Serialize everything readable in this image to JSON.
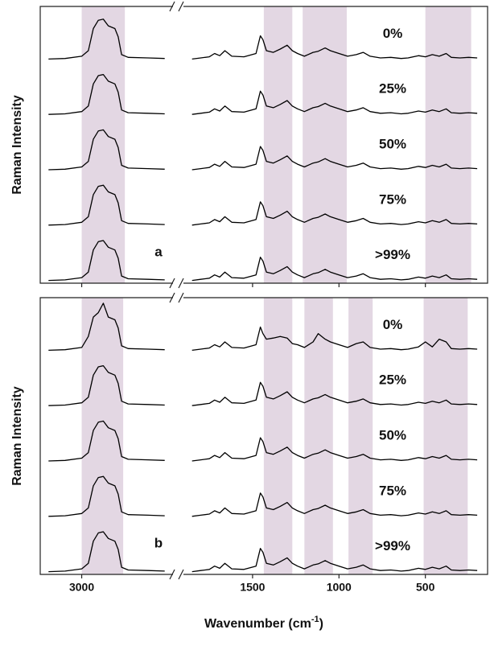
{
  "chart_data": [
    {
      "type": "line",
      "y_label": "Raman Intensity",
      "panel_label": "a",
      "xlim": [
        3250,
        140
      ],
      "x_break": [
        2450,
        1900
      ],
      "ylim": [
        -0.05,
        4.95
      ],
      "xticks": [
        3000,
        1500,
        1000,
        500
      ],
      "show_xtick_labels": false,
      "shade_color": "#e3d7e3",
      "shaded_regions": [
        [
          3000,
          2740
        ],
        [
          1435,
          1270
        ],
        [
          1210,
          955
        ],
        [
          500,
          235
        ]
      ],
      "x": [
        3200,
        3100,
        3000,
        2960,
        2930,
        2900,
        2870,
        2840,
        2800,
        2780,
        2760,
        2720,
        2600,
        2500,
        2000,
        1850,
        1800,
        1750,
        1720,
        1690,
        1660,
        1620,
        1550,
        1480,
        1455,
        1440,
        1420,
        1380,
        1340,
        1300,
        1270,
        1240,
        1200,
        1150,
        1120,
        1080,
        1050,
        1000,
        950,
        900,
        860,
        820,
        760,
        700,
        640,
        600,
        540,
        500,
        460,
        420,
        380,
        350,
        300,
        250,
        200
      ],
      "series": [
        {
          "name": "0%",
          "color": "#000000",
          "values": [
            4.0,
            4.01,
            4.05,
            4.15,
            4.55,
            4.7,
            4.72,
            4.6,
            4.55,
            4.4,
            4.08,
            4.03,
            4.02,
            4.01,
            null,
            4.0,
            4.02,
            4.04,
            4.1,
            4.06,
            4.15,
            4.05,
            4.04,
            4.1,
            4.42,
            4.35,
            4.15,
            4.12,
            4.18,
            4.25,
            4.15,
            4.1,
            4.05,
            4.12,
            4.14,
            4.2,
            4.15,
            4.1,
            4.05,
            4.08,
            4.12,
            4.05,
            4.02,
            4.03,
            4.01,
            4.02,
            4.06,
            4.04,
            4.08,
            4.05,
            4.1,
            4.03,
            4.02,
            4.03,
            4.02
          ]
        },
        {
          "name": "25%",
          "color": "#000000",
          "values": [
            3.0,
            3.01,
            3.05,
            3.15,
            3.55,
            3.7,
            3.72,
            3.6,
            3.55,
            3.4,
            3.08,
            3.03,
            3.02,
            3.01,
            null,
            3.0,
            3.02,
            3.04,
            3.1,
            3.06,
            3.15,
            3.05,
            3.04,
            3.1,
            3.42,
            3.35,
            3.15,
            3.12,
            3.18,
            3.25,
            3.15,
            3.1,
            3.05,
            3.12,
            3.14,
            3.2,
            3.15,
            3.1,
            3.05,
            3.08,
            3.12,
            3.05,
            3.02,
            3.03,
            3.01,
            3.02,
            3.06,
            3.04,
            3.08,
            3.05,
            3.1,
            3.03,
            3.02,
            3.03,
            3.02
          ]
        },
        {
          "name": "50%",
          "color": "#000000",
          "values": [
            2.0,
            2.01,
            2.05,
            2.15,
            2.55,
            2.7,
            2.72,
            2.6,
            2.55,
            2.4,
            2.08,
            2.03,
            2.02,
            2.01,
            null,
            2.0,
            2.02,
            2.04,
            2.1,
            2.06,
            2.15,
            2.05,
            2.04,
            2.1,
            2.42,
            2.35,
            2.15,
            2.12,
            2.18,
            2.25,
            2.15,
            2.1,
            2.05,
            2.12,
            2.14,
            2.2,
            2.15,
            2.1,
            2.05,
            2.08,
            2.12,
            2.05,
            2.02,
            2.03,
            2.01,
            2.02,
            2.06,
            2.04,
            2.08,
            2.05,
            2.1,
            2.03,
            2.02,
            2.03,
            2.02
          ]
        },
        {
          "name": "75%",
          "color": "#000000",
          "values": [
            1.0,
            1.01,
            1.05,
            1.15,
            1.55,
            1.7,
            1.72,
            1.6,
            1.55,
            1.4,
            1.08,
            1.03,
            1.02,
            1.01,
            null,
            1.0,
            1.02,
            1.04,
            1.1,
            1.06,
            1.15,
            1.05,
            1.04,
            1.1,
            1.42,
            1.35,
            1.15,
            1.12,
            1.18,
            1.25,
            1.15,
            1.1,
            1.05,
            1.12,
            1.14,
            1.2,
            1.15,
            1.1,
            1.05,
            1.08,
            1.12,
            1.05,
            1.02,
            1.03,
            1.01,
            1.02,
            1.06,
            1.04,
            1.08,
            1.05,
            1.1,
            1.03,
            1.02,
            1.03,
            1.02
          ]
        },
        {
          "name": ">99%",
          "color": "#000000",
          "values": [
            0.0,
            0.01,
            0.05,
            0.15,
            0.55,
            0.7,
            0.72,
            0.6,
            0.55,
            0.4,
            0.08,
            0.03,
            0.02,
            0.01,
            null,
            0.0,
            0.02,
            0.04,
            0.1,
            0.06,
            0.15,
            0.05,
            0.04,
            0.1,
            0.42,
            0.35,
            0.15,
            0.12,
            0.18,
            0.25,
            0.15,
            0.1,
            0.05,
            0.12,
            0.14,
            0.2,
            0.15,
            0.1,
            0.05,
            0.08,
            0.12,
            0.05,
            0.02,
            0.03,
            0.01,
            0.02,
            0.06,
            0.04,
            0.08,
            0.05,
            0.1,
            0.03,
            0.02,
            0.03,
            0.02
          ]
        }
      ]
    },
    {
      "type": "line",
      "y_label": "Raman Intensity",
      "panel_label": "b",
      "x_label": "Wavenumber (cm",
      "x_label_sup": "-1",
      "x_label_end": ")",
      "xlim": [
        3250,
        140
      ],
      "x_break": [
        2450,
        1900
      ],
      "ylim": [
        -0.05,
        4.95
      ],
      "xticks": [
        3000,
        1500,
        1000,
        500
      ],
      "show_xtick_labels": true,
      "shade_color": "#e3d7e3",
      "shaded_regions": [
        [
          3000,
          2750
        ],
        [
          1435,
          1270
        ],
        [
          1200,
          1035
        ],
        [
          945,
          805
        ],
        [
          510,
          255
        ]
      ],
      "x": [
        3200,
        3100,
        3000,
        2960,
        2930,
        2900,
        2870,
        2840,
        2800,
        2780,
        2760,
        2720,
        2600,
        2500,
        2000,
        1850,
        1800,
        1750,
        1720,
        1690,
        1660,
        1620,
        1550,
        1480,
        1455,
        1440,
        1420,
        1380,
        1340,
        1300,
        1270,
        1240,
        1200,
        1150,
        1120,
        1080,
        1050,
        1000,
        950,
        900,
        860,
        820,
        760,
        700,
        640,
        600,
        540,
        500,
        460,
        420,
        380,
        350,
        300,
        250,
        200
      ],
      "series": [
        {
          "name": "0%",
          "color": "#000000",
          "values": [
            4.0,
            4.01,
            4.05,
            4.25,
            4.6,
            4.68,
            4.85,
            4.6,
            4.55,
            4.4,
            4.08,
            4.03,
            4.02,
            4.01,
            null,
            4.0,
            4.02,
            4.04,
            4.1,
            4.06,
            4.15,
            4.05,
            4.04,
            4.1,
            4.42,
            4.3,
            4.2,
            4.22,
            4.25,
            4.22,
            4.12,
            4.1,
            4.05,
            4.15,
            4.3,
            4.2,
            4.15,
            4.1,
            4.05,
            4.12,
            4.15,
            4.05,
            4.02,
            4.03,
            4.01,
            4.02,
            4.06,
            4.15,
            4.06,
            4.2,
            4.15,
            4.03,
            4.02,
            4.03,
            4.02
          ]
        },
        {
          "name": "25%",
          "color": "#000000",
          "values": [
            3.0,
            3.01,
            3.05,
            3.15,
            3.55,
            3.7,
            3.72,
            3.6,
            3.55,
            3.4,
            3.08,
            3.03,
            3.02,
            3.01,
            null,
            3.0,
            3.02,
            3.04,
            3.1,
            3.06,
            3.15,
            3.05,
            3.04,
            3.1,
            3.42,
            3.35,
            3.15,
            3.12,
            3.18,
            3.25,
            3.15,
            3.1,
            3.05,
            3.12,
            3.14,
            3.2,
            3.15,
            3.1,
            3.05,
            3.08,
            3.12,
            3.05,
            3.02,
            3.03,
            3.01,
            3.02,
            3.06,
            3.04,
            3.08,
            3.05,
            3.1,
            3.03,
            3.02,
            3.03,
            3.02
          ]
        },
        {
          "name": "50%",
          "color": "#000000",
          "values": [
            2.0,
            2.01,
            2.05,
            2.15,
            2.55,
            2.7,
            2.72,
            2.6,
            2.55,
            2.4,
            2.08,
            2.03,
            2.02,
            2.01,
            null,
            2.0,
            2.02,
            2.04,
            2.1,
            2.06,
            2.15,
            2.05,
            2.04,
            2.1,
            2.42,
            2.35,
            2.15,
            2.12,
            2.18,
            2.25,
            2.15,
            2.1,
            2.05,
            2.12,
            2.14,
            2.2,
            2.15,
            2.1,
            2.05,
            2.08,
            2.12,
            2.05,
            2.02,
            2.03,
            2.01,
            2.02,
            2.06,
            2.04,
            2.08,
            2.05,
            2.1,
            2.03,
            2.02,
            2.03,
            2.02
          ]
        },
        {
          "name": "75%",
          "color": "#000000",
          "values": [
            1.0,
            1.01,
            1.05,
            1.15,
            1.55,
            1.7,
            1.72,
            1.6,
            1.55,
            1.4,
            1.08,
            1.03,
            1.02,
            1.01,
            null,
            1.0,
            1.02,
            1.04,
            1.1,
            1.06,
            1.15,
            1.05,
            1.04,
            1.1,
            1.42,
            1.35,
            1.15,
            1.12,
            1.18,
            1.25,
            1.15,
            1.1,
            1.05,
            1.12,
            1.14,
            1.2,
            1.15,
            1.1,
            1.05,
            1.08,
            1.12,
            1.05,
            1.02,
            1.03,
            1.01,
            1.02,
            1.06,
            1.04,
            1.08,
            1.05,
            1.1,
            1.03,
            1.02,
            1.03,
            1.02
          ]
        },
        {
          "name": ">99%",
          "color": "#000000",
          "values": [
            0.0,
            0.01,
            0.05,
            0.15,
            0.55,
            0.7,
            0.72,
            0.6,
            0.55,
            0.4,
            0.08,
            0.03,
            0.02,
            0.01,
            null,
            0.0,
            0.02,
            0.04,
            0.1,
            0.06,
            0.15,
            0.05,
            0.04,
            0.1,
            0.42,
            0.35,
            0.15,
            0.12,
            0.18,
            0.25,
            0.15,
            0.1,
            0.05,
            0.12,
            0.14,
            0.2,
            0.15,
            0.1,
            0.05,
            0.08,
            0.12,
            0.05,
            0.02,
            0.03,
            0.01,
            0.02,
            0.06,
            0.04,
            0.08,
            0.05,
            0.1,
            0.03,
            0.02,
            0.03,
            0.02
          ]
        }
      ]
    }
  ]
}
